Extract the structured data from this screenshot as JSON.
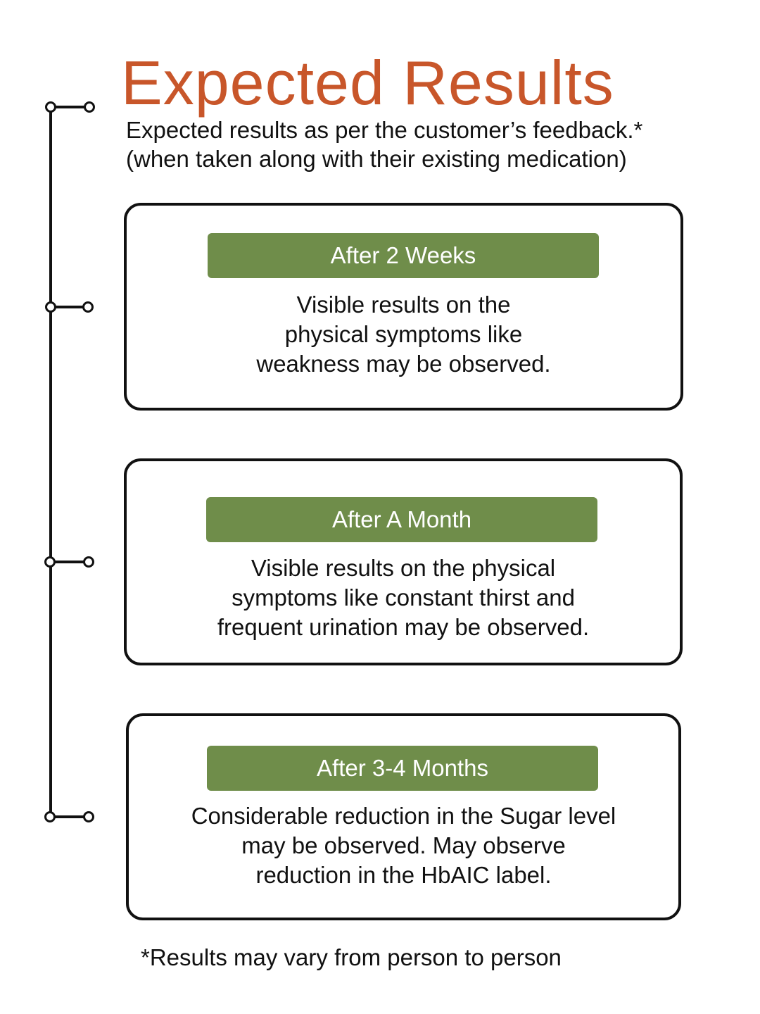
{
  "header": {
    "title": "Expected Results",
    "subtitle_line1": "Expected results as per the customer’s feedback.*",
    "subtitle_line2": "(when taken along with their existing medication)"
  },
  "colors": {
    "title": "#c8562a",
    "label_bar": "#6f8d4a",
    "line": "#111111"
  },
  "stages": [
    {
      "label": "After 2 Weeks",
      "lines": [
        "Visible results on the",
        "physical symptoms like",
        "weakness may be observed."
      ]
    },
    {
      "label": "After A Month",
      "lines": [
        "Visible results on the physical",
        "symptoms like constant thirst and",
        "frequent urination may be observed."
      ]
    },
    {
      "label": "After 3-4 Months",
      "lines": [
        "Considerable reduction in the Sugar level",
        "may be observed. May observe",
        "reduction in the HbAIC label."
      ]
    }
  ],
  "footnote": "*Results may vary from person to person"
}
